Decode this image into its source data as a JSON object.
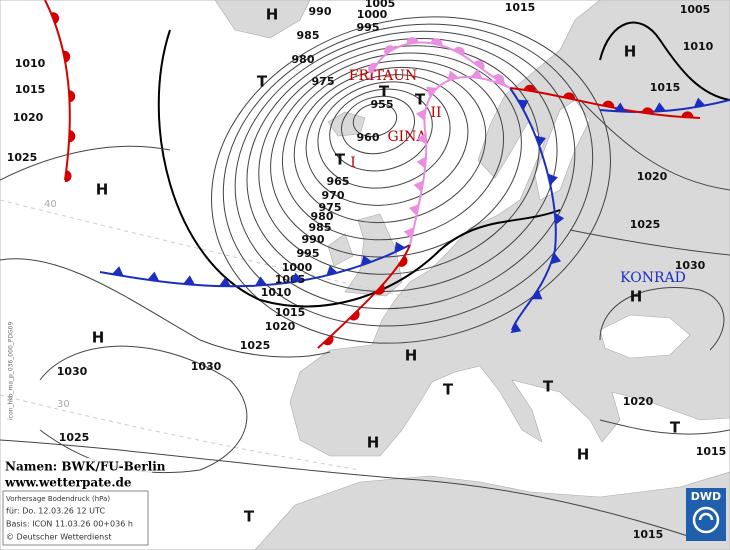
{
  "map": {
    "isobar_labels": [
      990,
      1005,
      1000,
      995,
      985,
      980,
      975,
      1015,
      1005,
      1010,
      1015,
      1010,
      1015,
      1020,
      1025,
      955,
      960,
      965,
      970,
      975,
      980,
      985,
      990,
      995,
      1000,
      1005,
      1010,
      1015,
      1020,
      1025,
      1030,
      1030,
      1025,
      1020,
      1025,
      1030,
      1020,
      1015,
      1015
    ],
    "centers": [
      "H",
      "T",
      "T",
      "T",
      "T",
      "H",
      "H",
      "H",
      "H",
      "T",
      "T",
      "H",
      "H",
      "T",
      "T",
      "H"
    ],
    "system_names": {
      "fritaun": "FRITAUN",
      "gina": "GINA",
      "konrad": "KONRAD",
      "roman_1": "I",
      "roman_2": "II"
    },
    "latitudes": [
      40,
      30
    ],
    "credits": {
      "names": "Namen: BWK/FU-Berlin",
      "website": "www.wetterpate.de"
    },
    "info_box": {
      "product": "Vorhersage Bodendruck (hPa)",
      "valid": "für: Do. 12.03.26 12 UTC",
      "base": "Basis: ICON 11.03.26 00+036 h",
      "copyright": "© Deutscher Wetterdienst"
    },
    "logo": "DWD",
    "side_code": "icon_hkb_ma_p_036_000_PDG09"
  }
}
